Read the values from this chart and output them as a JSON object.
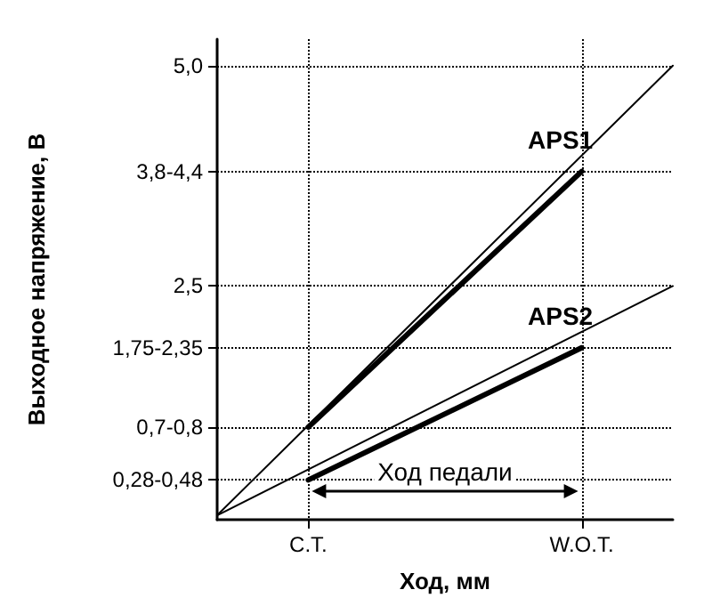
{
  "chart_data": {
    "type": "line",
    "xlabel": "Ход, мм",
    "ylabel": "Выходное напряжение, В",
    "categories": [
      null,
      "C.T.",
      null,
      null,
      "W.O.T.",
      null
    ],
    "series": [
      {
        "color": "#000000",
        "values": [
          -0.1,
          null,
          null,
          null,
          null,
          5.0
        ]
      },
      {
        "name": "APS1",
        "color": "#000000",
        "values": [
          null,
          0.9,
          null,
          null,
          3.8,
          null
        ]
      },
      {
        "color": "#000000",
        "values": [
          -0.1,
          null,
          null,
          null,
          null,
          2.5
        ]
      },
      {
        "name": "APS2",
        "color": "#000000",
        "values": [
          null,
          0.3,
          null,
          null,
          1.8,
          null
        ]
      }
    ],
    "ylim": [
      -0.15,
      5.3
    ],
    "yticks": [
      {
        "value": 0.3,
        "label": "0,28-0,48"
      },
      {
        "value": 0.9,
        "label": "0,7-0,8"
      },
      {
        "value": 1.8,
        "label": "1,75-2,35"
      },
      {
        "value": 2.5,
        "label": "2,5"
      },
      {
        "value": 3.8,
        "label": "3,8-4,4"
      },
      {
        "value": 5.0,
        "label": "5,0"
      }
    ],
    "annotations": [
      "Ход педали"
    ],
    "grid": true,
    "marker": "none",
    "line_style": "solid",
    "legend": false
  }
}
